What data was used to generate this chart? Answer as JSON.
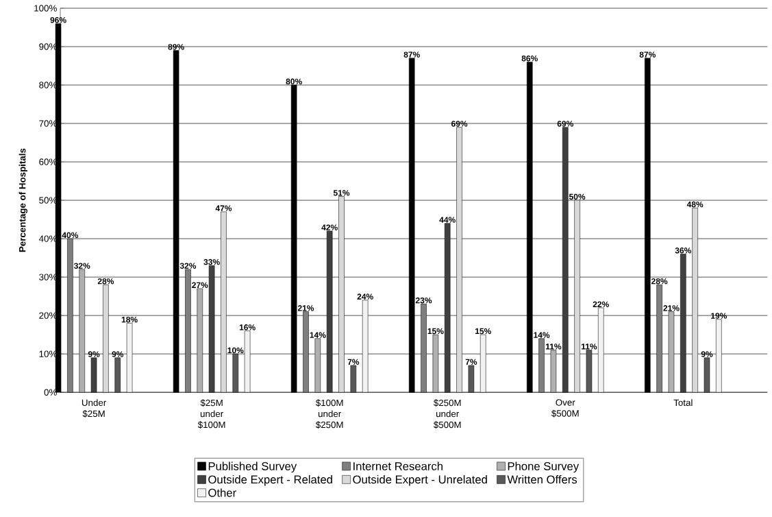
{
  "chart_data": {
    "type": "bar",
    "ylabel": "Percentage of Hospitals",
    "categories": [
      "Under $25M",
      "$25M under $100M",
      "$100M under $250M",
      "$250M under $500M",
      "Over $500M",
      "Total"
    ],
    "series": [
      {
        "name": "Published Survey",
        "color": "#000000",
        "values": [
          96,
          89,
          80,
          87,
          86,
          87
        ],
        "value_labels": [
          "96%",
          "89%",
          "80%",
          "87%",
          "86%",
          "87%"
        ]
      },
      {
        "name": "Internet Research",
        "color": "#7f7f7f",
        "values": [
          40,
          32,
          21,
          23,
          14,
          28
        ],
        "value_labels": [
          "40%",
          "32%",
          "21%",
          "23%",
          "14%",
          "28%"
        ]
      },
      {
        "name": "Phone Survey",
        "color": "#b0b0b0",
        "values": [
          32,
          27,
          14,
          15,
          11,
          21
        ],
        "value_labels": [
          "32%",
          "27%",
          "14%",
          "15%",
          "11%",
          "21%"
        ]
      },
      {
        "name": "Outside Expert - Related",
        "color": "#404040",
        "values": [
          9,
          33,
          42,
          44,
          69,
          36
        ],
        "value_labels": [
          "9%",
          "33%",
          "42%",
          "44%",
          "69%",
          "36%"
        ]
      },
      {
        "name": "Outside Expert - Unrelated",
        "color": "#d9d9d9",
        "values": [
          28,
          47,
          51,
          69,
          50,
          48
        ],
        "value_labels": [
          "28%",
          "47%",
          "51%",
          "69%",
          "50%",
          "48%"
        ]
      },
      {
        "name": "Written Offers",
        "color": "#595959",
        "values": [
          9,
          10,
          7,
          7,
          11,
          9
        ],
        "value_labels": [
          "9%",
          "10%",
          "7%",
          "7%",
          "11%",
          "9%"
        ]
      },
      {
        "name": "Other",
        "color": "#f2f2f2",
        "values": [
          18,
          16,
          24,
          15,
          22,
          19
        ],
        "value_labels": [
          "18%",
          "16%",
          "24%",
          "15%",
          "22%",
          "19%"
        ]
      }
    ],
    "ylim": [
      0,
      100
    ],
    "yticks": [
      {
        "value": 0,
        "label": "0%"
      },
      {
        "value": 10,
        "label": "10%"
      },
      {
        "value": 20,
        "label": "20%"
      },
      {
        "value": 30,
        "label": "30%"
      },
      {
        "value": 40,
        "label": "40%"
      },
      {
        "value": 50,
        "label": "50%"
      },
      {
        "value": 60,
        "label": "60%"
      },
      {
        "value": 70,
        "label": "70%"
      },
      {
        "value": 80,
        "label": "80%"
      },
      {
        "value": 90,
        "label": "90%"
      },
      {
        "value": 100,
        "label": "100%"
      }
    ],
    "grid": "y",
    "legend": "bottom"
  }
}
